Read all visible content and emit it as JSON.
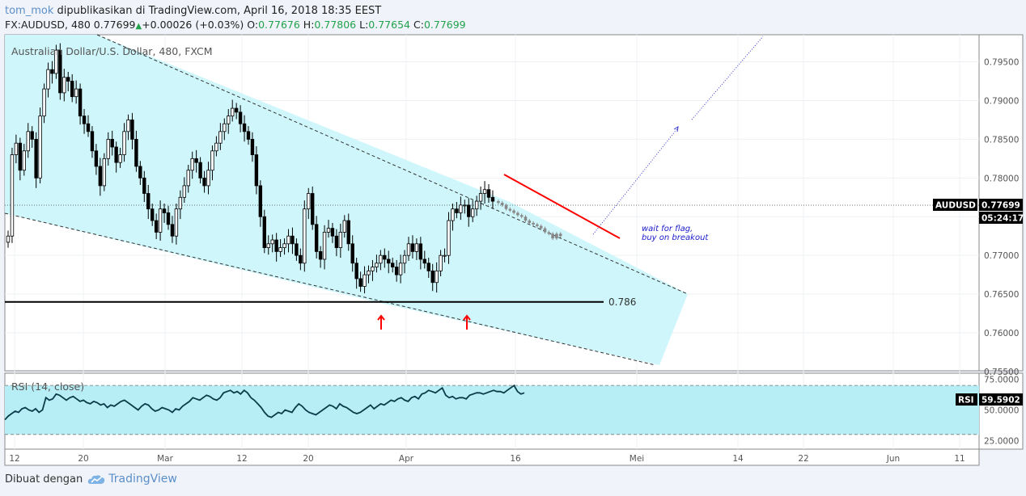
{
  "header": {
    "author": "tom_mok",
    "published_text": "dipublikasikan di TradingView.com, April 16, 2018 18:35 EEST",
    "symbol_interval": "FX:AUDUSD, 480",
    "last": "0.77699",
    "change": "+0.00026 (+0.03%)",
    "o_label": "O:",
    "o": "0.77676",
    "h_label": "H:",
    "h": "0.77806",
    "l_label": "L:",
    "l": "0.77654",
    "c_label": "C:",
    "c": "0.77699"
  },
  "footer": {
    "made_with": "Dibuat dengan",
    "brand": "TradingView"
  },
  "colors": {
    "channel_fill": "#ccf7fb",
    "channel_line": "#333333",
    "flag_line": "#ff0000",
    "projection": "#3333cc",
    "candle": "#000000",
    "candle_projected": "#888888",
    "arrow": "#ff0000",
    "rsi_line": "#0b3c49",
    "rsi_band": "#b7eef6",
    "label_bg": "#000000"
  },
  "chart_data": [
    {
      "type": "candlestick",
      "title": "Australian Dollar/U.S. Dollar, 480, FXCM",
      "ylim": [
        0.7551,
        0.7985
      ],
      "y_ticks": [
        "0.79500",
        "0.79000",
        "0.78500",
        "0.78000",
        "0.77500",
        "0.77000",
        "0.76500",
        "0.76000",
        "0.75500"
      ],
      "x_ticks": [
        "12",
        "20",
        "Mar",
        "12",
        "20",
        "Apr",
        "16",
        "Mei",
        "14",
        "22",
        "Jun",
        "11"
      ],
      "price_label": {
        "name": "AUDUSD",
        "value": "0.77699",
        "countdown": "05:24:17"
      },
      "horizontal_level": {
        "label": "0.786",
        "value": 0.764
      },
      "annotation": [
        "wait for flag,",
        "buy on breakout"
      ],
      "close_series": [
        0.7725,
        0.783,
        0.7845,
        0.781,
        0.7835,
        0.786,
        0.785,
        0.78,
        0.788,
        0.7915,
        0.794,
        0.7935,
        0.7965,
        0.791,
        0.793,
        0.7925,
        0.7905,
        0.7915,
        0.788,
        0.787,
        0.786,
        0.7835,
        0.7815,
        0.779,
        0.7825,
        0.785,
        0.784,
        0.782,
        0.783,
        0.786,
        0.7875,
        0.785,
        0.7815,
        0.78,
        0.778,
        0.776,
        0.7745,
        0.773,
        0.776,
        0.7755,
        0.774,
        0.7725,
        0.776,
        0.7775,
        0.779,
        0.781,
        0.7825,
        0.782,
        0.78,
        0.779,
        0.781,
        0.7835,
        0.7845,
        0.786,
        0.787,
        0.788,
        0.789,
        0.7885,
        0.787,
        0.786,
        0.785,
        0.783,
        0.779,
        0.775,
        0.771,
        0.7715,
        0.772,
        0.7705,
        0.771,
        0.7715,
        0.7725,
        0.7715,
        0.77,
        0.769,
        0.776,
        0.778,
        0.774,
        0.7705,
        0.7695,
        0.773,
        0.7735,
        0.7725,
        0.771,
        0.773,
        0.7745,
        0.7715,
        0.769,
        0.767,
        0.766,
        0.7675,
        0.768,
        0.7685,
        0.769,
        0.77,
        0.7695,
        0.769,
        0.7685,
        0.7675,
        0.769,
        0.77,
        0.7715,
        0.7705,
        0.7715,
        0.7695,
        0.769,
        0.768,
        0.7665,
        0.768,
        0.77,
        0.77,
        0.7745,
        0.776,
        0.7755,
        0.7765,
        0.7765,
        0.775,
        0.776,
        0.777,
        0.778,
        0.7785,
        0.7775,
        0.777
      ],
      "projected_flag_closes": [
        0.7768,
        0.7765,
        0.776,
        0.7758,
        0.7755,
        0.7752,
        0.775,
        0.7745,
        0.7742,
        0.774,
        0.7738,
        0.7735,
        0.773,
        0.7728,
        0.7722,
        0.7728,
        0.7725
      ]
    },
    {
      "type": "line",
      "title": "RSI (14, close)",
      "ylim": [
        18,
        80
      ],
      "y_ticks": [
        "75.0000",
        "50.0000",
        "25.0000"
      ],
      "bands": [
        30,
        70
      ],
      "last_label": {
        "name": "RSI",
        "value": "59.5902"
      },
      "values": [
        42,
        45,
        47,
        49,
        48,
        51,
        52,
        50,
        49,
        51,
        48,
        50,
        60,
        58,
        59,
        63,
        62,
        60,
        58,
        60,
        61,
        59,
        57,
        58,
        56,
        55,
        57,
        56,
        54,
        55,
        52,
        54,
        53,
        55,
        57,
        58,
        56,
        54,
        52,
        50,
        53,
        55,
        54,
        51,
        49,
        50,
        52,
        51,
        50,
        48,
        51,
        50,
        53,
        55,
        57,
        60,
        59,
        58,
        60,
        62,
        61,
        59,
        58,
        60,
        64,
        65,
        66,
        64,
        65,
        63,
        66,
        64,
        60,
        58,
        55,
        52,
        48,
        45,
        44,
        46,
        48,
        47,
        50,
        49,
        48,
        52,
        55,
        53,
        50,
        48,
        47,
        46,
        48,
        50,
        52,
        54,
        53,
        51,
        55,
        53,
        52,
        50,
        48,
        47,
        48,
        50,
        52,
        54,
        51,
        53,
        55,
        54,
        56,
        58,
        57,
        59,
        60,
        58,
        57,
        60,
        61
      ],
      "tail_values": [
        59,
        63,
        64,
        66,
        65,
        64,
        66,
        68,
        62,
        60,
        61,
        59,
        60,
        60,
        59,
        62,
        63,
        64,
        64,
        63,
        64,
        65,
        66,
        65,
        65,
        64,
        66,
        68,
        70,
        65,
        63,
        64
      ]
    }
  ]
}
